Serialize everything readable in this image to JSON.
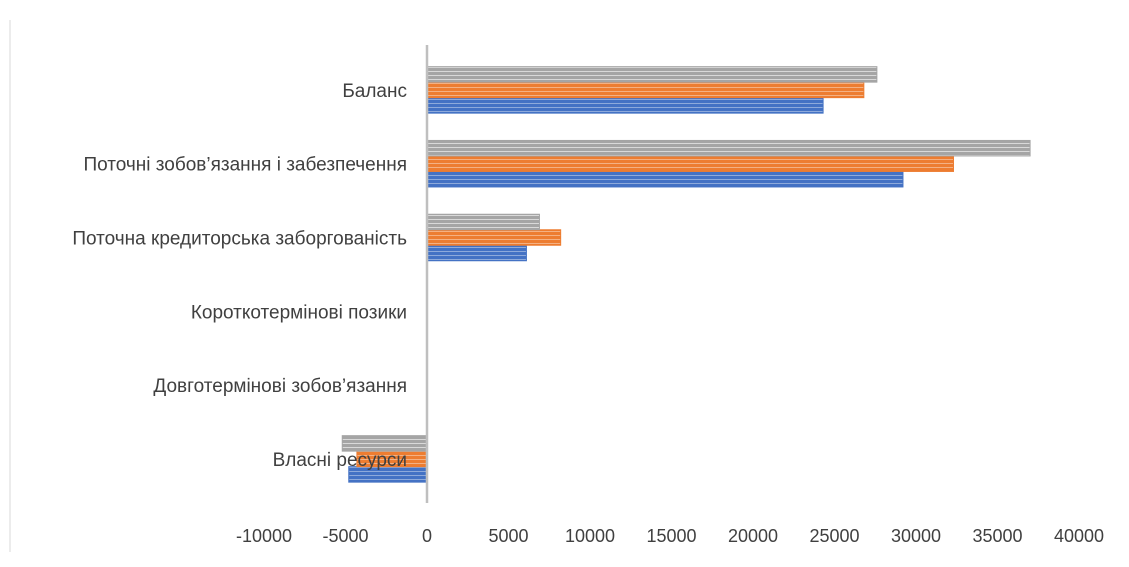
{
  "chart_data": {
    "type": "bar",
    "orientation": "horizontal",
    "categories": [
      "Баланс",
      "Поточні зобов’язання і забезпечення",
      "Поточна кредиторська заборгованість",
      "Короткотермінові позики",
      "Довготермінові зобов’язання",
      "Власні ресурси"
    ],
    "series": [
      {
        "color": "#4472C4",
        "values": [
          24300,
          29200,
          6100,
          0,
          0,
          -4800
        ]
      },
      {
        "color": "#ED7D31",
        "values": [
          26800,
          32300,
          8200,
          0,
          0,
          -4300
        ]
      },
      {
        "color": "#A5A5A5",
        "values": [
          27600,
          37000,
          6900,
          0,
          0,
          -5200
        ]
      }
    ],
    "x_ticks": [
      "-10000",
      "-5000",
      "0",
      "5000",
      "10000",
      "15000",
      "20000",
      "25000",
      "30000",
      "35000",
      "40000"
    ],
    "xlim": [
      -10000,
      40000
    ],
    "grid": false,
    "legend": "none",
    "title": "",
    "xlabel": "",
    "ylabel": ""
  }
}
